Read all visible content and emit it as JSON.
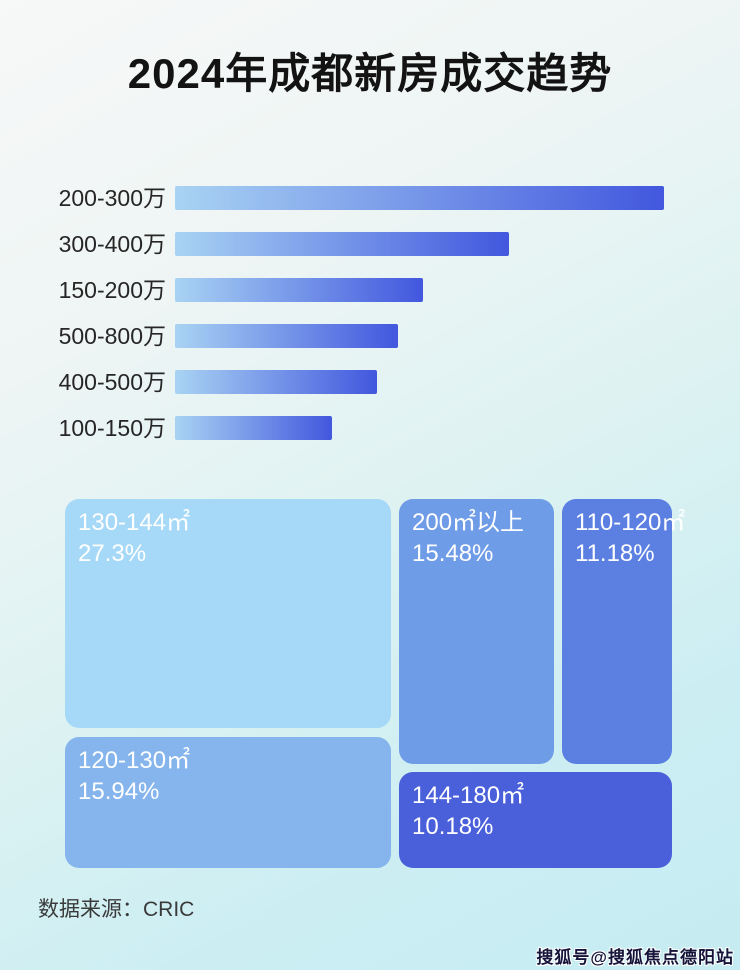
{
  "title": "2024年成都新房成交趋势",
  "colors": {
    "bar_gradient_start": "#a9d3f3",
    "bar_gradient_end": "#4257de",
    "background_top": "#f7f8f8",
    "background_bottom": "#c5ecf2",
    "bar_label_text": "#262626",
    "tile_text": "#ffffff"
  },
  "footer": {
    "source": "数据来源：CRIC"
  },
  "watermark": "搜狐号@搜狐焦点德阳站",
  "chart_data": [
    {
      "type": "bar",
      "orientation": "horizontal",
      "title": "2024年成都新房成交趋势",
      "categories": [
        "200-300万",
        "300-400万",
        "150-200万",
        "500-800万",
        "400-500万",
        "100-150万"
      ],
      "values_labeled": false,
      "relative_lengths_pct": [
        100,
        68.3,
        50.7,
        45.6,
        41.3,
        32.1
      ],
      "xlabel": "",
      "ylabel": "",
      "grid": false,
      "legend": false
    },
    {
      "type": "treemap",
      "items": [
        {
          "label": "130-144㎡",
          "value_pct": 27.3,
          "value_text": "27.3%",
          "color": "#a6d9f8"
        },
        {
          "label": "120-130㎡",
          "value_pct": 15.94,
          "value_text": "15.94%",
          "color": "#85b5ec"
        },
        {
          "label": "200㎡以上",
          "value_pct": 15.48,
          "value_text": "15.48%",
          "color": "#6f9ce6"
        },
        {
          "label": "110-120㎡",
          "value_pct": 11.18,
          "value_text": "11.18%",
          "color": "#5b80e2"
        },
        {
          "label": "144-180㎡",
          "value_pct": 10.18,
          "value_text": "10.18%",
          "color": "#4a60da"
        }
      ]
    }
  ]
}
